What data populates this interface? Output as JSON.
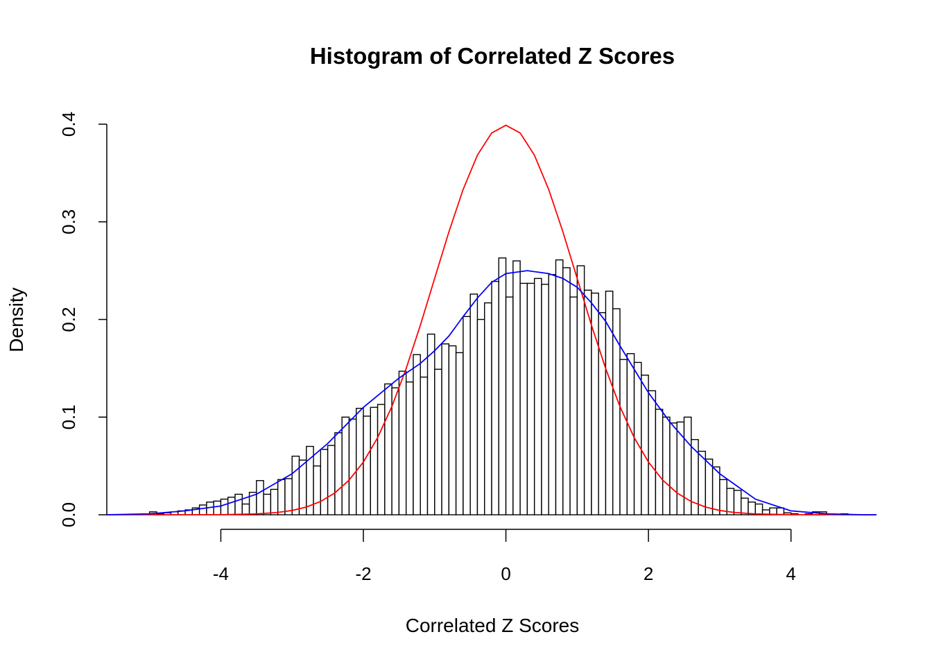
{
  "chart_data": {
    "type": "bar",
    "title": "Histogram of Correlated Z Scores",
    "xlabel": "Correlated Z Scores",
    "ylabel": "Density",
    "xlim": [
      -5.6,
      5.2
    ],
    "ylim": [
      0,
      0.4
    ],
    "x_ticks": [
      -4,
      -2,
      0,
      2,
      4
    ],
    "x_tick_labels": [
      "-4",
      "-2",
      "0",
      "2",
      "4"
    ],
    "y_ticks": [
      0,
      0.1,
      0.2,
      0.3,
      0.4
    ],
    "y_tick_labels": [
      "0.0",
      "0.1",
      "0.2",
      "0.3",
      "0.4"
    ],
    "bin_width": 0.1,
    "bins_start": [
      -5.0,
      -4.9,
      -4.8,
      -4.7,
      -4.6,
      -4.5,
      -4.4,
      -4.3,
      -4.2,
      -4.1,
      -4.0,
      -3.9,
      -3.8,
      -3.7,
      -3.6,
      -3.5,
      -3.4,
      -3.3,
      -3.2,
      -3.1,
      -3.0,
      -2.9,
      -2.8,
      -2.7,
      -2.6,
      -2.5,
      -2.4,
      -2.3,
      -2.2,
      -2.1,
      -2.0,
      -1.9,
      -1.8,
      -1.7,
      -1.6,
      -1.5,
      -1.4,
      -1.3,
      -1.2,
      -1.1,
      -1.0,
      -0.9,
      -0.8,
      -0.7,
      -0.6,
      -0.5,
      -0.4,
      -0.3,
      -0.2,
      -0.1,
      0.0,
      0.1,
      0.2,
      0.3,
      0.4,
      0.5,
      0.6,
      0.7,
      0.8,
      0.9,
      1.0,
      1.1,
      1.2,
      1.3,
      1.4,
      1.5,
      1.6,
      1.7,
      1.8,
      1.9,
      2.0,
      2.1,
      2.2,
      2.3,
      2.4,
      2.5,
      2.6,
      2.7,
      2.8,
      2.9,
      3.0,
      3.1,
      3.2,
      3.3,
      3.4,
      3.5,
      3.6,
      3.7,
      3.8,
      3.9,
      4.0,
      4.1,
      4.2,
      4.3,
      4.4,
      4.5,
      4.6,
      4.7
    ],
    "densities": [
      0.003,
      0.001,
      0.002,
      0.003,
      0.004,
      0.005,
      0.007,
      0.01,
      0.013,
      0.014,
      0.016,
      0.018,
      0.021,
      0.011,
      0.023,
      0.035,
      0.021,
      0.026,
      0.036,
      0.037,
      0.06,
      0.056,
      0.07,
      0.05,
      0.067,
      0.071,
      0.084,
      0.1,
      0.098,
      0.109,
      0.101,
      0.11,
      0.113,
      0.134,
      0.13,
      0.147,
      0.136,
      0.164,
      0.141,
      0.185,
      0.149,
      0.175,
      0.173,
      0.166,
      0.203,
      0.226,
      0.2,
      0.217,
      0.239,
      0.263,
      0.223,
      0.26,
      0.237,
      0.237,
      0.242,
      0.236,
      0.246,
      0.261,
      0.253,
      0.223,
      0.255,
      0.23,
      0.227,
      0.207,
      0.229,
      0.211,
      0.159,
      0.165,
      0.156,
      0.143,
      0.127,
      0.108,
      0.1,
      0.094,
      0.095,
      0.1,
      0.077,
      0.065,
      0.057,
      0.049,
      0.036,
      0.027,
      0.025,
      0.017,
      0.013,
      0.011,
      0.005,
      0.007,
      0.007,
      0.002,
      0.001,
      0.0,
      0.001,
      0.003,
      0.003,
      0.0,
      0.0,
      0.001
    ],
    "series": [
      {
        "type": "line",
        "color": "#ff0000",
        "x": [
          -5.6,
          -5.0,
          -4.5,
          -4.0,
          -3.5,
          -3.2,
          -3.0,
          -2.8,
          -2.6,
          -2.4,
          -2.2,
          -2.0,
          -1.8,
          -1.6,
          -1.4,
          -1.2,
          -1.0,
          -0.8,
          -0.6,
          -0.4,
          -0.2,
          0.0,
          0.2,
          0.4,
          0.6,
          0.8,
          1.0,
          1.2,
          1.4,
          1.6,
          1.8,
          2.0,
          2.2,
          2.4,
          2.6,
          2.8,
          3.0,
          3.2,
          3.5,
          4.0,
          4.5,
          5.0,
          5.2
        ],
        "y": [
          0.0,
          0.0,
          0.0,
          0.0001,
          0.0009,
          0.0024,
          0.0044,
          0.0079,
          0.0136,
          0.0224,
          0.0355,
          0.054,
          0.079,
          0.1109,
          0.1497,
          0.1942,
          0.242,
          0.2897,
          0.3332,
          0.3683,
          0.391,
          0.3989,
          0.391,
          0.3683,
          0.3332,
          0.2897,
          0.242,
          0.1942,
          0.1497,
          0.1109,
          0.079,
          0.054,
          0.0355,
          0.0224,
          0.0136,
          0.0079,
          0.0044,
          0.0024,
          0.0009,
          0.0001,
          0.0,
          0.0,
          0.0
        ]
      },
      {
        "type": "line",
        "color": "#0000ff",
        "x": [
          -5.6,
          -5.0,
          -4.5,
          -4.0,
          -3.5,
          -3.0,
          -2.5,
          -2.0,
          -1.5,
          -1.2,
          -1.0,
          -0.8,
          -0.6,
          -0.4,
          -0.2,
          0.0,
          0.3,
          0.6,
          0.8,
          1.0,
          1.2,
          1.4,
          1.6,
          1.8,
          2.0,
          2.3,
          2.6,
          3.0,
          3.5,
          4.0,
          4.5,
          5.0,
          5.2
        ],
        "y": [
          0.0,
          0.001,
          0.004,
          0.009,
          0.021,
          0.042,
          0.073,
          0.11,
          0.14,
          0.155,
          0.168,
          0.183,
          0.203,
          0.222,
          0.238,
          0.247,
          0.25,
          0.247,
          0.242,
          0.233,
          0.217,
          0.198,
          0.173,
          0.149,
          0.125,
          0.095,
          0.07,
          0.042,
          0.016,
          0.004,
          0.001,
          0.0,
          0.0
        ]
      }
    ]
  }
}
